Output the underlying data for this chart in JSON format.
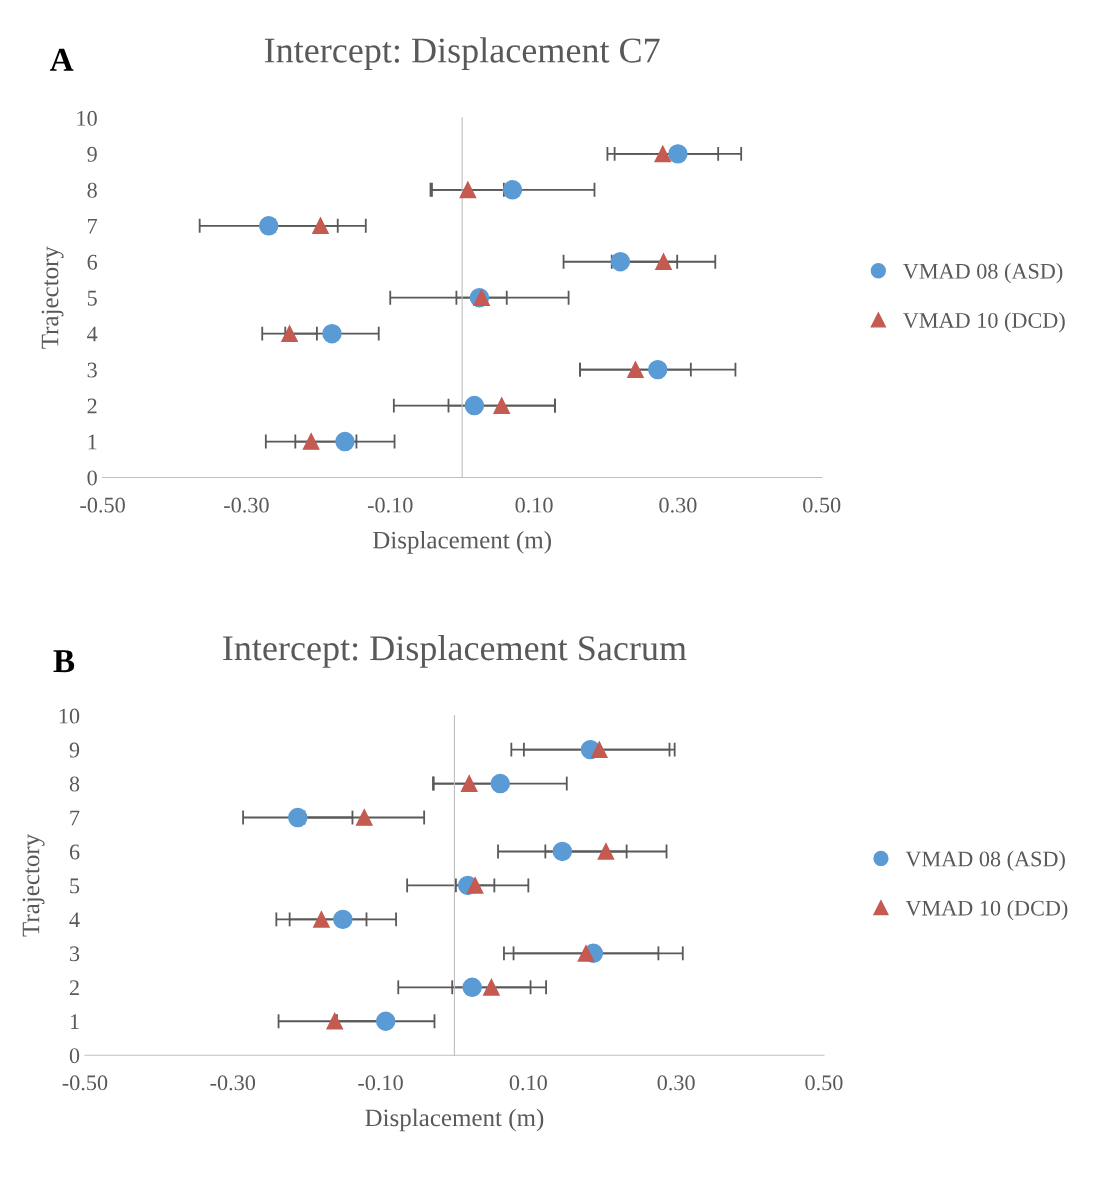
{
  "chart_data": [
    {
      "type": "scatter",
      "title": "Intercept: Displacement C7",
      "xlabel": "Displacement (m)",
      "ylabel": "Trajectory",
      "annotations": [
        "A"
      ],
      "xlim": [
        -0.5,
        0.5
      ],
      "xticks": [
        {
          "value": -0.5,
          "label": "-0.50"
        },
        {
          "value": -0.3,
          "label": "-0.30"
        },
        {
          "value": -0.1,
          "label": "-0.10"
        },
        {
          "value": 0.1,
          "label": "0.10"
        },
        {
          "value": 0.3,
          "label": "0.30"
        },
        {
          "value": 0.5,
          "label": "0.50"
        }
      ],
      "ylim": [
        0,
        10
      ],
      "yticks": [
        0,
        1,
        2,
        3,
        4,
        5,
        6,
        7,
        8,
        9,
        10
      ],
      "legend": "right",
      "grid": false,
      "series": [
        {
          "name": "VMAD 08 (ASD)",
          "color": "#5b9bd5",
          "marker": "circle",
          "x": [
            -0.163,
            0.017,
            0.272,
            -0.181,
            0.024,
            0.22,
            -0.269,
            0.07,
            0.3
          ],
          "values": [
            1,
            2,
            3,
            4,
            5,
            6,
            7,
            8,
            9
          ],
          "xerrors": [
            0.069,
            0.112,
            0.108,
            0.065,
            0.124,
            0.079,
            0.096,
            0.114,
            0.088
          ]
        },
        {
          "name": "VMAD 10 (DCD)",
          "color": "#c55a51",
          "marker": "triangle",
          "x": [
            -0.21,
            0.055,
            0.241,
            -0.24,
            0.027,
            0.28,
            -0.197,
            0.008,
            0.279
          ],
          "values": [
            1,
            2,
            3,
            4,
            5,
            6,
            7,
            8,
            9
          ],
          "xerrors": [
            0.063,
            0.074,
            0.077,
            0.038,
            0.035,
            0.072,
            0.063,
            0.05,
            0.077
          ]
        }
      ]
    },
    {
      "type": "scatter",
      "title": "Intercept: Displacement Sacrum",
      "xlabel": "Displacement (m)",
      "ylabel": "Trajectory",
      "annotations": [
        "B"
      ],
      "xlim": [
        -0.5,
        0.5
      ],
      "xticks": [
        {
          "value": -0.5,
          "label": "-0.50"
        },
        {
          "value": -0.3,
          "label": "-0.30"
        },
        {
          "value": -0.1,
          "label": "-0.10"
        },
        {
          "value": 0.1,
          "label": "0.10"
        },
        {
          "value": 0.3,
          "label": "0.30"
        },
        {
          "value": 0.5,
          "label": "0.50"
        }
      ],
      "ylim": [
        0,
        10
      ],
      "yticks": [
        0,
        1,
        2,
        3,
        4,
        5,
        6,
        7,
        8,
        9,
        10
      ],
      "legend": "right",
      "grid": false,
      "series": [
        {
          "name": "VMAD 08 (ASD)",
          "color": "#5b9bd5",
          "marker": "circle",
          "x": [
            -0.093,
            0.024,
            0.188,
            -0.151,
            0.018,
            0.146,
            -0.212,
            0.062,
            0.184
          ],
          "values": [
            1,
            2,
            3,
            4,
            5,
            6,
            7,
            8,
            9
          ],
          "xerrors": [
            0.066,
            0.1,
            0.121,
            0.072,
            0.082,
            0.087,
            0.074,
            0.09,
            0.107
          ]
        },
        {
          "name": "VMAD 10 (DCD)",
          "color": "#c55a51",
          "marker": "triangle",
          "x": [
            -0.162,
            0.05,
            0.178,
            -0.18,
            0.028,
            0.205,
            -0.122,
            0.02,
            0.196
          ],
          "values": [
            1,
            2,
            3,
            4,
            5,
            6,
            7,
            8,
            9
          ],
          "xerrors": [
            0.076,
            0.053,
            0.098,
            0.061,
            0.026,
            0.082,
            0.081,
            0.049,
            0.102
          ]
        }
      ]
    }
  ]
}
